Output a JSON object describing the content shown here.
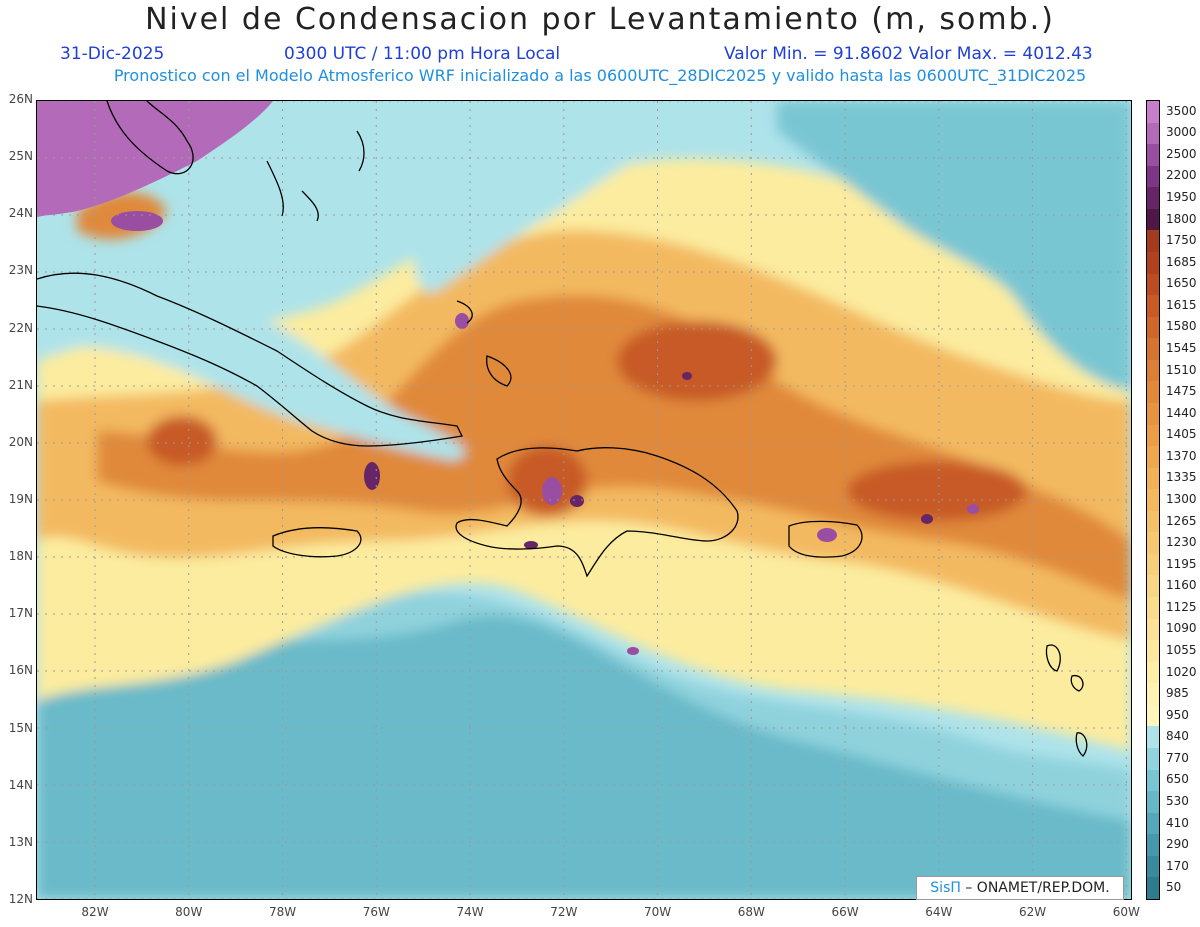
{
  "title": "Nivel de Condensacion por Levantamiento (m, somb.)",
  "date": "31-Dic-2025",
  "time": "0300 UTC / 11:00 pm Hora Local",
  "minmax": "Valor Min. = 91.8602  Valor Max. = 4012.43",
  "subtitle": "Pronostico con el Modelo Atmosferico WRF inicializado a las 0600UTC_28DIC2025 y valido hasta las  0600UTC_31DIC2025",
  "credit_brand": "SisΠ",
  "credit_text": " – ONAMET/REP.DOM.",
  "lat_labels": [
    "26N",
    "25N",
    "24N",
    "23N",
    "22N",
    "21N",
    "20N",
    "19N",
    "18N",
    "17N",
    "16N",
    "15N",
    "14N",
    "13N",
    "12N"
  ],
  "lon_labels": [
    "82W",
    "80W",
    "78W",
    "76W",
    "74W",
    "72W",
    "70W",
    "68W",
    "66W",
    "64W",
    "62W",
    "60W"
  ],
  "legend_labels": [
    "3500",
    "3000",
    "2500",
    "2200",
    "1950",
    "1800",
    "1750",
    "1685",
    "1650",
    "1615",
    "1580",
    "1545",
    "1510",
    "1475",
    "1440",
    "1405",
    "1370",
    "1335",
    "1300",
    "1265",
    "1230",
    "1195",
    "1160",
    "1125",
    "1090",
    "1055",
    "1020",
    "985",
    "950",
    "840",
    "770",
    "650",
    "530",
    "410",
    "290",
    "170",
    "50"
  ],
  "legend_colors": [
    "#c77fcb",
    "#b36ab8",
    "#9a4ea2",
    "#7e3585",
    "#652566",
    "#4e1745",
    "#a43a1e",
    "#b0421f",
    "#bc4c22",
    "#c75a26",
    "#cf672b",
    "#d57330",
    "#db7f36",
    "#e0893b",
    "#e69442",
    "#eb9e48",
    "#eea84f",
    "#f0b157",
    "#f3b960",
    "#f4c068",
    "#f6c872",
    "#f7d07b",
    "#f8d684",
    "#f9dc8d",
    "#fbe296",
    "#fce89f",
    "#fdeea8",
    "#fef3b2",
    "#fff6bb",
    "#aee3ea",
    "#8fd4df",
    "#79c6d3",
    "#66b7c7",
    "#55a8ba",
    "#4699ac",
    "#3a8a9d",
    "#2f7c8f"
  ],
  "map_colors": {
    "sea_light": "#aee3ea",
    "sea_mid": "#79c6d3",
    "sea_dark": "#55a8ba",
    "yellow": "#fcec9f",
    "light_orange": "#f3b960",
    "orange": "#e0893b",
    "dark_orange": "#c75a26",
    "purple": "#9a4ea2",
    "dark_purple": "#652566",
    "violet": "#b36ab8"
  }
}
